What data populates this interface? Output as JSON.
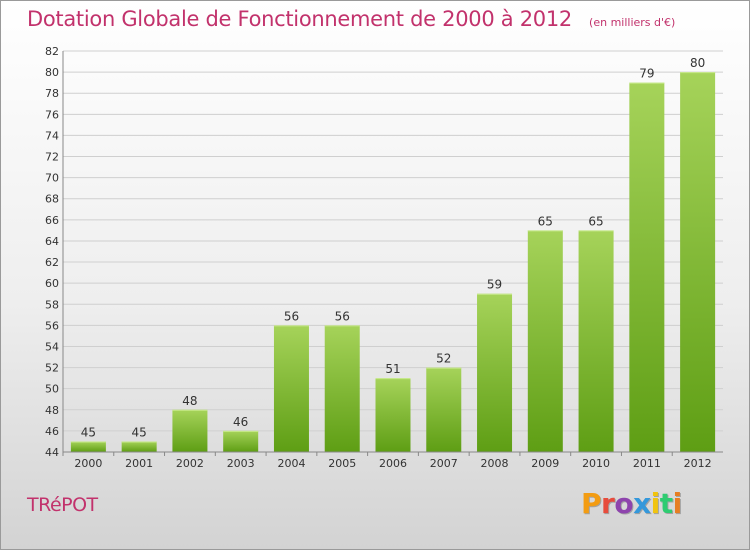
{
  "header": {
    "title": "Dotation Globale de Fonctionnement de 2000 à 2012",
    "unit": "(en milliers d'€)"
  },
  "footer": {
    "commune": "TRéPOT",
    "brand": "Proxiti",
    "brand_colors": [
      "#f39c12",
      "#e74c3c",
      "#8e44ad",
      "#3498db",
      "#f1c40f",
      "#2ecc71",
      "#e67e22"
    ]
  },
  "colors": {
    "title": "#c2326c",
    "bar_light": "#a6d35a",
    "bar_dark": "#5e9e14",
    "grid": "#cfcfcf",
    "axis_text": "#333333"
  },
  "chart_data": {
    "type": "bar",
    "categories": [
      "2000",
      "2001",
      "2002",
      "2003",
      "2004",
      "2005",
      "2006",
      "2007",
      "2008",
      "2009",
      "2010",
      "2011",
      "2012"
    ],
    "values": [
      45,
      45,
      48,
      46,
      56,
      56,
      51,
      52,
      59,
      65,
      65,
      79,
      80
    ],
    "ylim": [
      44,
      82
    ],
    "yticks": [
      44,
      46,
      48,
      50,
      52,
      54,
      56,
      58,
      60,
      62,
      64,
      66,
      68,
      70,
      72,
      74,
      76,
      78,
      80,
      82
    ],
    "grid": true,
    "data_labels": true,
    "title": "Dotation Globale de Fonctionnement de 2000 à 2012",
    "xlabel": "",
    "ylabel": ""
  }
}
